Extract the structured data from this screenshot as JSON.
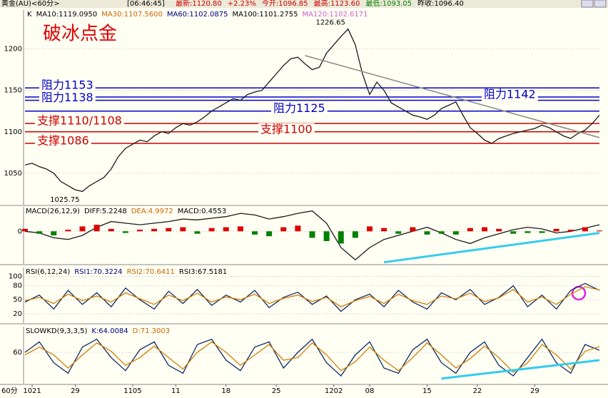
{
  "header": {
    "symbol": "黄金(AU)<60分>",
    "time": "[06:46:45]",
    "fields": [
      {
        "text": "最新:1120.80",
        "color": "#cc0000"
      },
      {
        "text": "+2.23%",
        "color": "#cc0000"
      },
      {
        "text": "今开:1096.85",
        "color": "#cc0000"
      },
      {
        "text": "最高:1123.60",
        "color": "#cc0000"
      },
      {
        "text": "最低:1093.05",
        "color": "#008000"
      },
      {
        "text": "昨收:1096.40",
        "color": "#000000"
      }
    ]
  },
  "chart_data": [
    {
      "type": "line",
      "title": "破冰点金",
      "period_label": "60分",
      "indicator_labels": [
        {
          "text": "K",
          "color": "#000000"
        },
        {
          "text": "MA10:1119.0950",
          "color": "#000000"
        },
        {
          "text": "MA30:1107.5600",
          "color": "#cc6600"
        },
        {
          "text": "MA60:1102.0875",
          "color": "#000080"
        },
        {
          "text": "MA100:1101.2755",
          "color": "#000000"
        },
        {
          "text": "MA120:1102.6171",
          "color": "#cc66cc"
        }
      ],
      "series": [
        {
          "name": "K",
          "color": "#1a1a1a",
          "values": [
            1060,
            1062,
            1058,
            1055,
            1050,
            1040,
            1035,
            1030,
            1028,
            1035,
            1040,
            1045,
            1055,
            1070,
            1080,
            1085,
            1090,
            1088,
            1095,
            1100,
            1098,
            1105,
            1110,
            1108,
            1112,
            1118,
            1125,
            1130,
            1135,
            1140,
            1138,
            1145,
            1148,
            1150,
            1160,
            1170,
            1180,
            1188,
            1190,
            1182,
            1175,
            1178,
            1195,
            1205,
            1215,
            1224,
            1205,
            1170,
            1145,
            1160,
            1150,
            1135,
            1130,
            1125,
            1120,
            1118,
            1115,
            1120,
            1128,
            1132,
            1136,
            1120,
            1105,
            1098,
            1090,
            1086,
            1092,
            1095,
            1098,
            1100,
            1102,
            1104,
            1108,
            1105,
            1100,
            1095,
            1092,
            1098,
            1102,
            1110,
            1120
          ]
        }
      ],
      "annotations": [
        {
          "label": "1226.65",
          "value": 1226.65,
          "x": 45
        },
        {
          "label": "1025.75",
          "value": 1025.75,
          "x": 8
        }
      ],
      "levels": [
        {
          "label": "阻力1153",
          "value": 1153,
          "color": "#0000cc"
        },
        {
          "label": "阻力1142",
          "value": 1142,
          "color": "#0000cc"
        },
        {
          "label": "阻力1138",
          "value": 1138,
          "color": "#0000cc"
        },
        {
          "label": "阻力1125",
          "value": 1125,
          "color": "#0000cc"
        },
        {
          "label": "支撑1110/1108",
          "value": 1110,
          "color": "#cc0000"
        },
        {
          "label": "支撑1100",
          "value": 1100,
          "color": "#cc0000"
        },
        {
          "label": "支撑1086",
          "value": 1086,
          "color": "#cc0000"
        }
      ],
      "trendlines": [
        {
          "x": [
            39,
            80
          ],
          "y": [
            1192,
            1093
          ],
          "color": "#888888"
        }
      ],
      "xlim": [
        0,
        80
      ],
      "xticks": [
        {
          "value": 1,
          "label": "1021"
        },
        {
          "value": 7,
          "label": "29"
        },
        {
          "value": 15,
          "label": "1105"
        },
        {
          "value": 21,
          "label": "11"
        },
        {
          "value": 28,
          "label": "18"
        },
        {
          "value": 35,
          "label": "25"
        },
        {
          "value": 43,
          "label": "1202"
        },
        {
          "value": 48,
          "label": "08"
        },
        {
          "value": 56,
          "label": "15"
        },
        {
          "value": 63,
          "label": "22"
        },
        {
          "value": 71,
          "label": "29"
        }
      ],
      "ylim": [
        1012,
        1247
      ],
      "yticks": [
        1050,
        1100,
        1150,
        1200
      ]
    },
    {
      "type": "macd",
      "title": "MACD(26,12,9)",
      "indicator_labels": [
        {
          "text": "DIFF:5.2248",
          "color": "#000000"
        },
        {
          "text": "DEA:4.9972",
          "color": "#cc6600"
        },
        {
          "text": "MACD:0.4553",
          "color": "#000000"
        }
      ],
      "series": [
        {
          "name": "DIFF",
          "color": "#1a1a1a",
          "values": [
            0,
            -2,
            -8,
            -10,
            -5,
            5,
            12,
            10,
            8,
            10,
            12,
            15,
            14,
            16,
            18,
            22,
            20,
            15,
            18,
            22,
            25,
            10,
            -20,
            -35,
            -20,
            -10,
            -5,
            0,
            5,
            -2,
            -10,
            -15,
            -8,
            -3,
            2,
            5,
            3,
            -2,
            0,
            4,
            8
          ]
        },
        {
          "name": "MACD",
          "color": "#e00000",
          "values": [
            3,
            -3,
            -5,
            2,
            6,
            8,
            3,
            -2,
            2,
            3,
            4,
            5,
            -3,
            4,
            5,
            6,
            -4,
            -6,
            5,
            7,
            -8,
            -12,
            -15,
            -8,
            6,
            4,
            -3,
            5,
            -4,
            -3,
            -4,
            4,
            5,
            3,
            -3,
            -2,
            -2,
            3,
            2,
            5,
            1
          ]
        }
      ],
      "trendlines": [
        {
          "x": [
            25,
            40
          ],
          "y": [
            -38,
            -2
          ],
          "color": "#33ccee"
        }
      ],
      "xlim": [
        0,
        40
      ],
      "ylim": [
        -40,
        30
      ],
      "yticks": [
        0
      ]
    },
    {
      "type": "line",
      "title": "RSI(6,12,24)",
      "indicator_labels": [
        {
          "text": "RSI1:70.3224",
          "color": "#000080"
        },
        {
          "text": "RSI2:70.6411",
          "color": "#cc6600"
        },
        {
          "text": "RSI3:67.5181",
          "color": "#000000"
        }
      ],
      "series": [
        {
          "name": "RSI1",
          "color": "#102a60",
          "values": [
            45,
            60,
            30,
            70,
            40,
            65,
            35,
            75,
            50,
            30,
            68,
            42,
            72,
            38,
            60,
            45,
            70,
            33,
            55,
            66,
            40,
            58,
            25,
            50,
            62,
            35,
            70,
            45,
            30,
            65,
            50,
            72,
            40,
            55,
            80,
            35,
            60,
            30,
            70,
            85,
            70
          ]
        },
        {
          "name": "RSI2",
          "color": "#d08000",
          "values": [
            48,
            55,
            42,
            62,
            48,
            58,
            45,
            65,
            52,
            40,
            60,
            48,
            64,
            45,
            56,
            50,
            62,
            42,
            53,
            60,
            46,
            55,
            35,
            48,
            57,
            42,
            62,
            48,
            40,
            58,
            52,
            64,
            46,
            54,
            72,
            45,
            56,
            40,
            62,
            78,
            71
          ]
        }
      ],
      "xlim": [
        0,
        40
      ],
      "ylim": [
        0,
        119
      ],
      "yticks": [
        20,
        50,
        80,
        100
      ]
    },
    {
      "type": "line",
      "title": "SLOWKD(9,3,3,5)",
      "indicator_labels": [
        {
          "text": "K:64.0084",
          "color": "#000080"
        },
        {
          "text": "D:71.3003",
          "color": "#cc6600"
        }
      ],
      "series": [
        {
          "name": "K",
          "color": "#102a60",
          "values": [
            60,
            80,
            40,
            20,
            70,
            85,
            50,
            25,
            65,
            80,
            35,
            20,
            75,
            85,
            45,
            25,
            70,
            80,
            30,
            60,
            85,
            40,
            15,
            55,
            80,
            30,
            20,
            65,
            85,
            40,
            20,
            60,
            80,
            35,
            15,
            50,
            85,
            40,
            20,
            75,
            64
          ]
        },
        {
          "name": "D",
          "color": "#d08000",
          "values": [
            55,
            70,
            55,
            30,
            55,
            78,
            62,
            35,
            50,
            72,
            50,
            28,
            60,
            80,
            60,
            35,
            55,
            75,
            45,
            50,
            78,
            55,
            25,
            42,
            70,
            45,
            25,
            50,
            78,
            55,
            30,
            48,
            72,
            50,
            22,
            40,
            75,
            55,
            28,
            62,
            71
          ]
        }
      ],
      "trendlines": [
        {
          "x": [
            29,
            40
          ],
          "y": [
            10,
            45
          ],
          "color": "#33ccee"
        }
      ],
      "xlim": [
        0,
        40
      ],
      "ylim": [
        0,
        109
      ],
      "yticks": [
        60
      ]
    }
  ]
}
